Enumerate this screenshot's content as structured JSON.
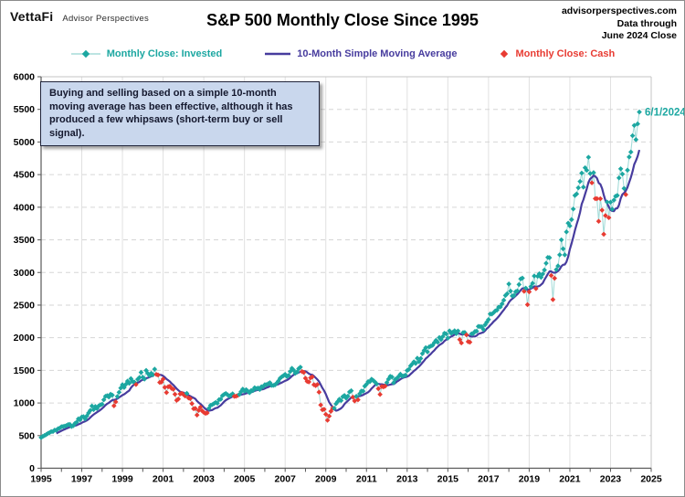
{
  "header": {
    "brand": "VettaFi",
    "brand_sub": "Advisor Perspectives",
    "title": "S&P 500 Monthly Close Since 1995",
    "right_line1": "advisorperspectives.com",
    "right_line2": "Data through",
    "right_line3": "June 2024 Close"
  },
  "legend": [
    {
      "label": "Monthly Close: Invested",
      "color": "#1ca7a1",
      "line_color": "#a5dcd9",
      "marker": "line-diamond"
    },
    {
      "label": "10-Month Simple Moving Average",
      "color": "#473c9e",
      "marker": "line"
    },
    {
      "label": "Monthly Close: Cash",
      "color": "#e83b32",
      "marker": "diamond"
    }
  ],
  "annotation": {
    "text": "Buying and selling based on a simple 10-month moving average has been effective, although it has produced a few whipsaws (short-term buy or sell signal)."
  },
  "last_point_label": "6/1/2024",
  "chart_data": {
    "type": "line",
    "title": "S&P 500 Monthly Close Since 1995",
    "frequency": "monthly",
    "x_start": "1995-01",
    "x_end": "2024-06",
    "xlim": [
      1995,
      2025
    ],
    "ylim": [
      0,
      6000
    ],
    "y_ticks": [
      0,
      500,
      1000,
      1500,
      2000,
      2500,
      3000,
      3500,
      4000,
      4500,
      5000,
      5500,
      6000
    ],
    "x_ticks": [
      1995,
      1997,
      1999,
      2001,
      2003,
      2005,
      2007,
      2009,
      2011,
      2013,
      2015,
      2017,
      2019,
      2021,
      2023,
      2025
    ],
    "grid": true,
    "legend_position": "top",
    "series": [
      {
        "name": "Monthly Close: Invested",
        "type": "scatter-line",
        "rule": "months at or above 10-month SMA"
      },
      {
        "name": "10-Month Simple Moving Average",
        "type": "line",
        "derived": "10-month simple moving average of monthly closes"
      },
      {
        "name": "Monthly Close: Cash",
        "type": "scatter",
        "rule": "months below 10-month SMA"
      }
    ],
    "colors": {
      "invested": "#1ca7a1",
      "connector": "#a5dcd9",
      "moving_average": "#473c9e",
      "cash": "#e83b32",
      "grid_vertical": "#e0e0e0",
      "grid_horizontal": "#d6d6d6",
      "axis": "#595959",
      "plot_border": "#c4c4c4"
    },
    "monthly_closes": [
      470,
      487,
      501,
      515,
      533,
      545,
      562,
      562,
      584,
      582,
      605,
      616,
      636,
      640,
      646,
      654,
      669,
      671,
      640,
      652,
      687,
      705,
      757,
      741,
      786,
      791,
      757,
      801,
      848,
      885,
      954,
      899,
      947,
      915,
      955,
      970,
      980,
      1049,
      1102,
      1112,
      1091,
      1134,
      1121,
      957,
      1017,
      1099,
      1164,
      1229,
      1280,
      1238,
      1286,
      1335,
      1302,
      1373,
      1329,
      1320,
      1283,
      1363,
      1389,
      1469,
      1394,
      1366,
      1499,
      1452,
      1421,
      1455,
      1431,
      1518,
      1437,
      1429,
      1315,
      1320,
      1366,
      1240,
      1160,
      1249,
      1256,
      1224,
      1211,
      1134,
      1041,
      1060,
      1139,
      1148,
      1130,
      1107,
      1147,
      1077,
      1067,
      990,
      912,
      916,
      815,
      886,
      936,
      880,
      856,
      841,
      848,
      917,
      964,
      975,
      990,
      1008,
      996,
      1051,
      1058,
      1112,
      1131,
      1145,
      1126,
      1107,
      1121,
      1141,
      1102,
      1104,
      1115,
      1130,
      1174,
      1212,
      1181,
      1204,
      1181,
      1157,
      1192,
      1191,
      1234,
      1220,
      1229,
      1207,
      1249,
      1248,
      1280,
      1281,
      1295,
      1311,
      1270,
      1270,
      1277,
      1304,
      1336,
      1378,
      1401,
      1418,
      1438,
      1407,
      1421,
      1482,
      1531,
      1503,
      1455,
      1474,
      1527,
      1549,
      1481,
      1468,
      1379,
      1331,
      1323,
      1386,
      1400,
      1280,
      1267,
      1283,
      1166,
      969,
      896,
      903,
      826,
      735,
      798,
      873,
      919,
      919,
      987,
      1021,
      1057,
      1036,
      1096,
      1115,
      1074,
      1104,
      1169,
      1187,
      1089,
      1031,
      1102,
      1049,
      1141,
      1183,
      1181,
      1258,
      1286,
      1327,
      1326,
      1364,
      1345,
      1321,
      1292,
      1219,
      1131,
      1253,
      1247,
      1258,
      1312,
      1366,
      1408,
      1398,
      1310,
      1362,
      1379,
      1407,
      1441,
      1412,
      1416,
      1426,
      1498,
      1515,
      1569,
      1598,
      1631,
      1606,
      1686,
      1633,
      1682,
      1757,
      1806,
      1848,
      1783,
      1859,
      1872,
      1884,
      1924,
      1960,
      1931,
      2003,
      1972,
      2018,
      2068,
      2059,
      1995,
      2105,
      2068,
      2086,
      2107,
      2063,
      2104,
      1972,
      1920,
      2079,
      2080,
      2044,
      1940,
      1932,
      2060,
      2065,
      2097,
      2099,
      2174,
      2171,
      2168,
      2126,
      2199,
      2239,
      2279,
      2364,
      2363,
      2384,
      2412,
      2423,
      2470,
      2472,
      2519,
      2575,
      2648,
      2674,
      2824,
      2714,
      2641,
      2648,
      2705,
      2718,
      2816,
      2902,
      2914,
      2712,
      2760,
      2507,
      2704,
      2784,
      2834,
      2946,
      2752,
      2942,
      2980,
      2926,
      2977,
      3038,
      3141,
      3231,
      3226,
      2954,
      2585,
      2912,
      3044,
      3100,
      3271,
      3500,
      3363,
      3270,
      3622,
      3756,
      3714,
      3811,
      3973,
      4181,
      4204,
      4298,
      4395,
      4523,
      4308,
      4605,
      4567,
      4766,
      4516,
      4374,
      4530,
      4132,
      4132,
      3785,
      4130,
      3955,
      3586,
      3872,
      4080,
      3840,
      4077,
      3970,
      4109,
      4169,
      4180,
      4450,
      4589,
      4508,
      4288,
      4194,
      4568,
      4770,
      4846,
      5096,
      5254,
      5036,
      5278,
      5460
    ]
  }
}
